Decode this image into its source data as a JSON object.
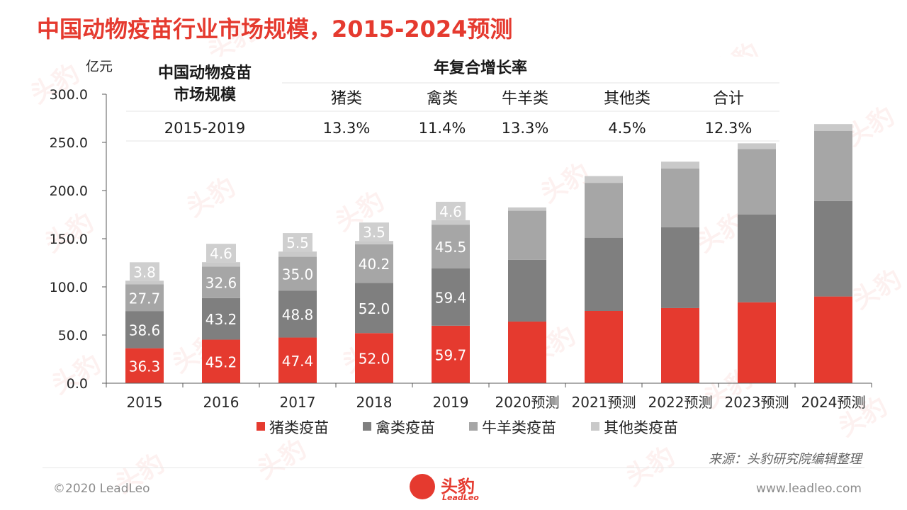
{
  "page": {
    "title": "中国动物疫苗行业市场规模，2015-2024预测",
    "source": "来源：头豹研究院编辑整理",
    "copyright": "©2020 LeadLeo",
    "website": "www.leadleo.com",
    "logo_text": "头豹",
    "logo_sub": "LeadLeo",
    "watermark": "头豹"
  },
  "colors": {
    "title": "#e53a2f",
    "pig": "#e53a2f",
    "poultry": "#7f7f7f",
    "ruminant": "#a6a6a6",
    "other": "#c9c9c9"
  },
  "cagr_table": {
    "left_header_line1": "中国动物疫苗",
    "left_header_line2": "市场规模",
    "group_header": "年复合增长率",
    "columns": [
      "猪类",
      "禽类",
      "牛羊类",
      "其他类",
      "合计"
    ],
    "row": {
      "period": "2015-2019",
      "values": [
        "13.3%",
        "11.4%",
        "13.3%",
        "4.5%",
        "12.3%"
      ]
    }
  },
  "chart_data": {
    "type": "bar",
    "stacked": true,
    "unit_label": "亿元",
    "ylim": [
      0,
      300
    ],
    "yticks": [
      "0.0",
      "50.0",
      "100.0",
      "150.0",
      "200.0",
      "250.0",
      "300.0"
    ],
    "categories": [
      "2015",
      "2016",
      "2017",
      "2018",
      "2019",
      "2020预测",
      "2021预测",
      "2022预测",
      "2023预测",
      "2024预测"
    ],
    "series": [
      {
        "name": "猪类疫苗",
        "values": [
          36.3,
          45.2,
          47.4,
          52.0,
          59.7,
          64,
          75,
          78,
          84,
          90
        ]
      },
      {
        "name": "禽类疫苗",
        "values": [
          38.6,
          43.2,
          48.8,
          52.0,
          59.4,
          64,
          76,
          84,
          91,
          99
        ]
      },
      {
        "name": "牛羊类疫苗",
        "values": [
          27.7,
          32.6,
          35.0,
          40.2,
          45.5,
          51,
          57,
          61,
          68,
          73
        ]
      },
      {
        "name": "其他类疫苗",
        "values": [
          3.8,
          4.6,
          5.5,
          3.5,
          4.6,
          3.5,
          7,
          7,
          6,
          7
        ]
      }
    ],
    "labeled_count": 5,
    "legend_position": "bottom",
    "grid": false
  }
}
